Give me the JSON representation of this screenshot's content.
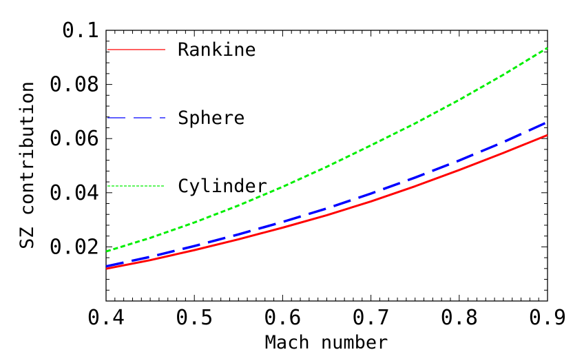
{
  "chart_data": {
    "type": "line",
    "title": "",
    "xlabel": "Mach number",
    "ylabel": "SZ contribution",
    "xlim": [
      0.4,
      0.9
    ],
    "ylim": [
      0.0,
      0.1
    ],
    "xticks": [
      0.4,
      0.5,
      0.6,
      0.7,
      0.8,
      0.9
    ],
    "xtick_labels": [
      "0.4",
      "0.5",
      "0.6",
      "0.7",
      "0.8",
      "0.9"
    ],
    "yticks": [
      0.02,
      0.04,
      0.06,
      0.08,
      0.1
    ],
    "ytick_labels": [
      "0.02",
      "0.04",
      "0.06",
      "0.08",
      "0.1"
    ],
    "grid": false,
    "legend_position": "top-left, inside plot",
    "series": [
      {
        "name": "Rankine",
        "color": "#ff0000",
        "style": "solid",
        "x": [
          0.4,
          0.45,
          0.5,
          0.55,
          0.6,
          0.65,
          0.7,
          0.75,
          0.8,
          0.85,
          0.9
        ],
        "y": [
          0.0119,
          0.0151,
          0.0188,
          0.0228,
          0.0271,
          0.0317,
          0.0368,
          0.0424,
          0.0484,
          0.0547,
          0.0613
        ]
      },
      {
        "name": "Sphere",
        "color": "#0000ff",
        "style": "long-dash",
        "x": [
          0.4,
          0.45,
          0.5,
          0.55,
          0.6,
          0.65,
          0.7,
          0.75,
          0.8,
          0.85,
          0.9
        ],
        "y": [
          0.0128,
          0.0163,
          0.0203,
          0.0246,
          0.0292,
          0.0342,
          0.0397,
          0.0456,
          0.0519,
          0.0587,
          0.0661
        ]
      },
      {
        "name": "Cylinder",
        "color": "#00ee00",
        "style": "short-dash",
        "x": [
          0.4,
          0.45,
          0.5,
          0.55,
          0.6,
          0.65,
          0.7,
          0.75,
          0.8,
          0.85,
          0.9
        ],
        "y": [
          0.0183,
          0.0233,
          0.029,
          0.0353,
          0.0422,
          0.0496,
          0.0575,
          0.0656,
          0.0743,
          0.0836,
          0.0935
        ]
      }
    ]
  }
}
